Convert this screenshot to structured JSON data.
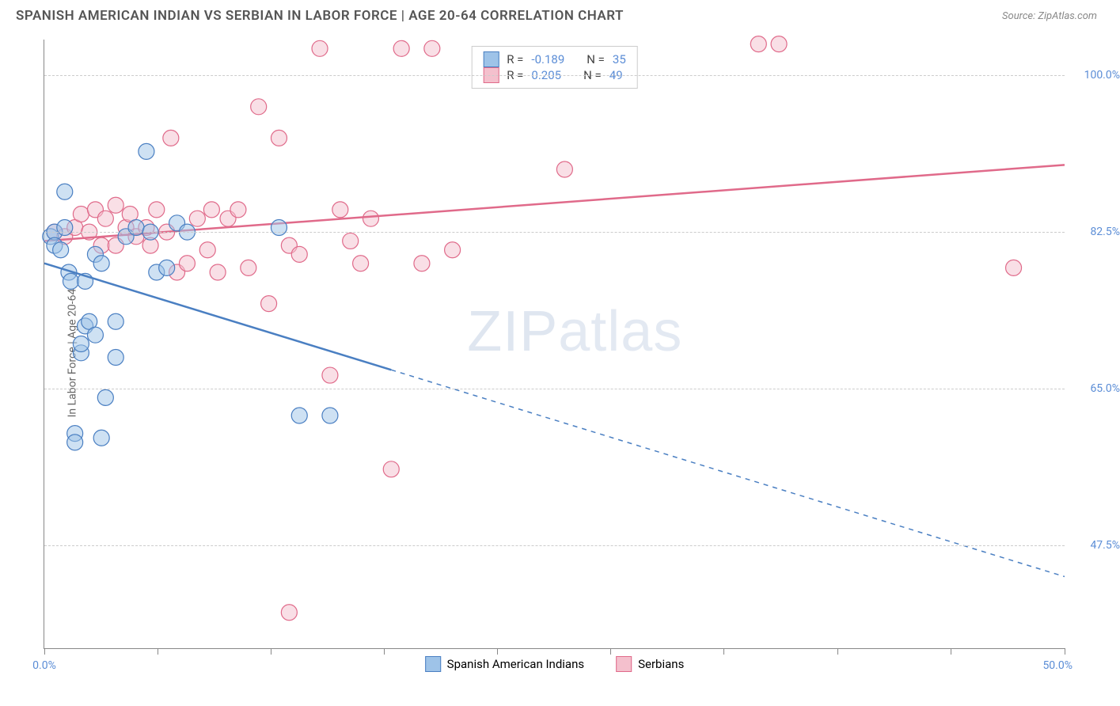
{
  "title": "SPANISH AMERICAN INDIAN VS SERBIAN IN LABOR FORCE | AGE 20-64 CORRELATION CHART",
  "source": "Source: ZipAtlas.com",
  "y_axis_label": "In Labor Force | Age 20-64",
  "watermark": {
    "zip": "ZIP",
    "atlas": "atlas"
  },
  "chart": {
    "type": "scatter",
    "background_color": "#ffffff",
    "grid_color": "#cccccc",
    "axis_color": "#888888",
    "marker_radius": 10,
    "marker_opacity": 0.5,
    "line_width": 2.5,
    "xlim": [
      0,
      50
    ],
    "ylim": [
      36,
      104
    ],
    "y_ticks": [
      47.5,
      65.0,
      82.5,
      100.0
    ],
    "y_tick_labels": [
      "47.5%",
      "65.0%",
      "82.5%",
      "100.0%"
    ],
    "x_ticks": [
      0,
      5.55,
      11.1,
      16.65,
      22.2,
      27.75,
      33.3,
      38.85,
      44.4,
      50
    ],
    "x_tick_labels": {
      "left": "0.0%",
      "right": "50.0%"
    },
    "stat_label_color": "#5b8dd6"
  },
  "series": {
    "blue": {
      "label": "Spanish American Indians",
      "fill_color": "#9ec3e8",
      "stroke_color": "#4a7fc2",
      "R": "-0.189",
      "N": "35",
      "regression": {
        "x1": 0,
        "y1": 79,
        "x2": 50,
        "y2": 44,
        "solid_until_x": 17
      },
      "points": [
        [
          0.3,
          82
        ],
        [
          0.5,
          82.5
        ],
        [
          0.5,
          81
        ],
        [
          0.8,
          80.5
        ],
        [
          1.0,
          87
        ],
        [
          1.0,
          83
        ],
        [
          1.2,
          78
        ],
        [
          1.3,
          77
        ],
        [
          1.5,
          60
        ],
        [
          1.5,
          59
        ],
        [
          1.8,
          69
        ],
        [
          1.8,
          70
        ],
        [
          2.0,
          72
        ],
        [
          2.0,
          77
        ],
        [
          2.2,
          72.5
        ],
        [
          2.5,
          80
        ],
        [
          2.5,
          71
        ],
        [
          2.8,
          79
        ],
        [
          2.8,
          59.5
        ],
        [
          3.0,
          64
        ],
        [
          3.5,
          68.5
        ],
        [
          3.5,
          72.5
        ],
        [
          4.0,
          82
        ],
        [
          4.5,
          83
        ],
        [
          5.0,
          91.5
        ],
        [
          5.2,
          82.5
        ],
        [
          5.5,
          78
        ],
        [
          6.0,
          78.5
        ],
        [
          6.5,
          83.5
        ],
        [
          7.0,
          82.5
        ],
        [
          11.5,
          83
        ],
        [
          12.5,
          62
        ],
        [
          14.0,
          62
        ]
      ]
    },
    "pink": {
      "label": "Serbians",
      "fill_color": "#f4c0cd",
      "stroke_color": "#e06a8a",
      "R": "0.205",
      "N": "49",
      "regression": {
        "x1": 0,
        "y1": 81.5,
        "x2": 50,
        "y2": 90,
        "solid_until_x": 50
      },
      "points": [
        [
          0.5,
          82.5
        ],
        [
          1.0,
          82
        ],
        [
          1.5,
          83
        ],
        [
          1.8,
          84.5
        ],
        [
          2.2,
          82.5
        ],
        [
          2.5,
          85
        ],
        [
          2.8,
          81
        ],
        [
          3.0,
          84
        ],
        [
          3.5,
          81
        ],
        [
          3.5,
          85.5
        ],
        [
          4.0,
          83
        ],
        [
          4.2,
          84.5
        ],
        [
          4.5,
          82
        ],
        [
          5.0,
          83
        ],
        [
          5.2,
          81
        ],
        [
          5.5,
          85
        ],
        [
          6.0,
          82.5
        ],
        [
          6.2,
          93
        ],
        [
          6.5,
          78
        ],
        [
          7.0,
          79
        ],
        [
          7.5,
          84
        ],
        [
          8.0,
          80.5
        ],
        [
          8.2,
          85
        ],
        [
          8.5,
          78
        ],
        [
          9.0,
          84
        ],
        [
          9.5,
          85
        ],
        [
          10.0,
          78.5
        ],
        [
          10.5,
          96.5
        ],
        [
          11.0,
          74.5
        ],
        [
          11.5,
          93
        ],
        [
          12.0,
          81
        ],
        [
          12.5,
          80
        ],
        [
          12.0,
          40
        ],
        [
          13.5,
          103
        ],
        [
          14.0,
          66.5
        ],
        [
          14.5,
          85
        ],
        [
          15.5,
          79
        ],
        [
          15.0,
          81.5
        ],
        [
          16.0,
          84
        ],
        [
          17.5,
          103
        ],
        [
          17.0,
          56
        ],
        [
          18.5,
          79
        ],
        [
          19.0,
          103
        ],
        [
          20.0,
          80.5
        ],
        [
          25.5,
          89.5
        ],
        [
          35.0,
          103.5
        ],
        [
          36.0,
          103.5
        ],
        [
          47.5,
          78.5
        ]
      ]
    }
  },
  "legend_top": {
    "r_label": "R  = ",
    "n_label": "N  = "
  }
}
